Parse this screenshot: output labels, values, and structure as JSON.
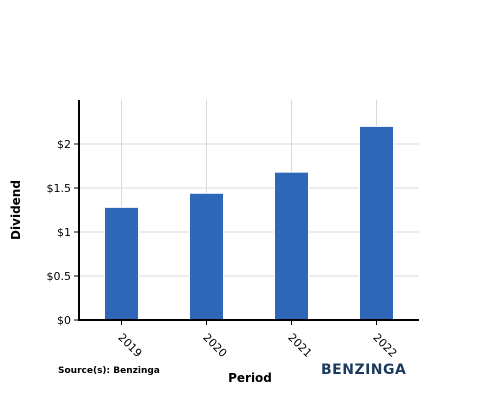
{
  "chart_data": {
    "type": "bar",
    "categories": [
      "2019",
      "2020",
      "2021",
      "2022"
    ],
    "values": [
      1.28,
      1.44,
      1.68,
      2.2
    ],
    "xlabel": "Period",
    "ylabel": "Dividend",
    "ylim": [
      0,
      2.5
    ],
    "yticks": [
      0,
      0.5,
      1,
      1.5,
      2
    ],
    "ytick_labels": [
      "$0",
      "$0.5",
      "$1",
      "$1.5",
      "$2"
    ],
    "grid": true,
    "bar_color": "#2e66b8"
  },
  "source": "Source(s): Benzinga",
  "brand": "BENZINGA"
}
